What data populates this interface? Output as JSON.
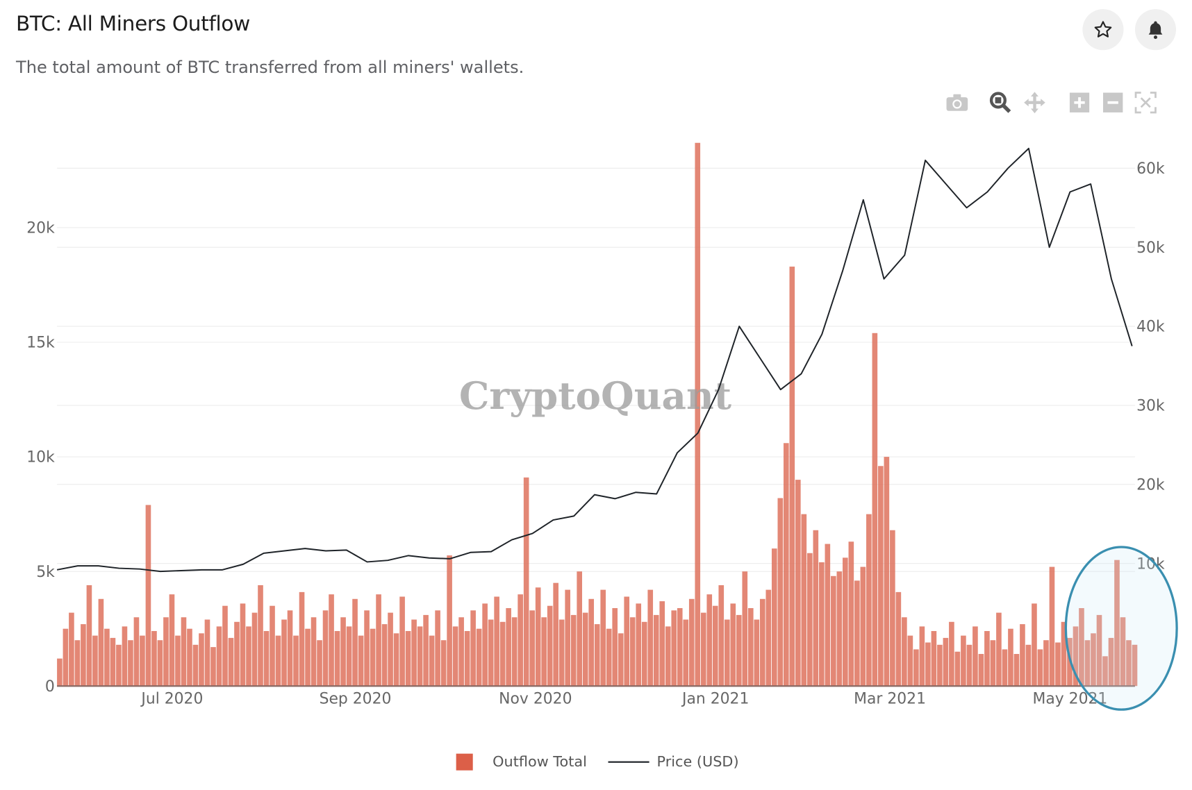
{
  "header": {
    "title": "BTC: All Miners Outflow",
    "subtitle": "The total amount of BTC transferred from all miners' wallets."
  },
  "actions": {
    "favorite": "star-icon",
    "alert": "bell-icon"
  },
  "toolbar": [
    "camera-icon",
    "zoom-icon",
    "pan-icon",
    "zoom-in-icon",
    "zoom-out-icon",
    "autoscale-icon"
  ],
  "watermark": "CryptoQuant",
  "colors": {
    "bars": "#e07a66",
    "price": "#1e2328",
    "annotation": "#3a8fb0"
  },
  "chart_data": {
    "type": "bar+line",
    "start_date": "2020-05-23",
    "bar_interval_days": 2,
    "price_interval_days": 7,
    "x_ticks": [
      {
        "label": "Jul 2020",
        "day": 39
      },
      {
        "label": "Sep 2020",
        "day": 101
      },
      {
        "label": "Nov 2020",
        "day": 162
      },
      {
        "label": "Jan 2021",
        "day": 223
      },
      {
        "label": "Mar 2021",
        "day": 282
      },
      {
        "label": "May 2021",
        "day": 343
      }
    ],
    "x_range_days": [
      0,
      365
    ],
    "y_left": {
      "range": [
        0,
        23800
      ],
      "ticks": [
        0,
        5000,
        10000,
        15000,
        20000
      ],
      "tick_labels": [
        "0",
        "5k",
        "10k",
        "15k",
        "20k"
      ]
    },
    "y_right": {
      "range": [
        -5500,
        63500
      ],
      "ticks": [
        10000,
        20000,
        30000,
        40000,
        50000,
        60000
      ],
      "tick_labels": [
        "10k",
        "20k",
        "30k",
        "40k",
        "50k",
        "60k"
      ]
    },
    "series": [
      {
        "name": "Outflow Total",
        "type": "bar",
        "axis": "left",
        "unit": "k BTC",
        "values": [
          1.2,
          2.5,
          3.2,
          2.0,
          2.7,
          4.4,
          2.2,
          3.8,
          2.5,
          2.1,
          1.8,
          2.6,
          2.0,
          3.0,
          2.2,
          7.9,
          2.4,
          2.0,
          3.0,
          4.0,
          2.2,
          3.0,
          2.5,
          1.8,
          2.3,
          2.9,
          1.7,
          2.6,
          3.5,
          2.1,
          2.8,
          3.6,
          2.6,
          3.2,
          4.4,
          2.4,
          3.5,
          2.2,
          2.9,
          3.3,
          2.2,
          4.1,
          2.5,
          3.0,
          2.0,
          3.3,
          4.0,
          2.4,
          3.0,
          2.6,
          3.8,
          2.2,
          3.3,
          2.5,
          4.0,
          2.7,
          3.2,
          2.3,
          3.9,
          2.4,
          2.9,
          2.6,
          3.1,
          2.2,
          3.3,
          2.0,
          5.7,
          2.6,
          3.0,
          2.4,
          3.3,
          2.5,
          3.6,
          2.9,
          3.9,
          2.8,
          3.4,
          3.0,
          4.0,
          9.1,
          3.3,
          4.3,
          3.0,
          3.5,
          4.5,
          2.9,
          4.2,
          3.1,
          5.0,
          3.2,
          3.8,
          2.7,
          4.2,
          2.5,
          3.4,
          2.3,
          3.9,
          3.0,
          3.6,
          2.8,
          4.2,
          3.1,
          3.7,
          2.6,
          3.3,
          3.4,
          2.9,
          3.8,
          23.7,
          3.2,
          4.0,
          3.5,
          4.4,
          2.9,
          3.6,
          3.1,
          5.0,
          3.4,
          2.9,
          3.8,
          4.2,
          6.0,
          8.2,
          10.6,
          18.3,
          9.0,
          7.5,
          5.8,
          6.8,
          5.4,
          6.2,
          4.8,
          5.0,
          5.6,
          6.3,
          4.6,
          5.2,
          7.5,
          15.4,
          9.6,
          10.0,
          6.8,
          4.1,
          3.0,
          2.2,
          1.6,
          2.6,
          1.9,
          2.4,
          1.8,
          2.1,
          2.8,
          1.5,
          2.2,
          1.8,
          2.6,
          1.4,
          2.4,
          2.0,
          3.2,
          1.6,
          2.5,
          1.4,
          2.7,
          1.8,
          3.6,
          1.6,
          2.0,
          5.2,
          1.9,
          2.8,
          2.1,
          2.6,
          3.4,
          2.0,
          2.3,
          3.1,
          1.3,
          2.1,
          5.5,
          3.0,
          2.0,
          1.8
        ]
      },
      {
        "name": "Price (USD)",
        "type": "line",
        "axis": "right",
        "unit": "k USD",
        "values": [
          9.2,
          9.7,
          9.7,
          9.4,
          9.3,
          9.0,
          9.1,
          9.2,
          9.2,
          9.9,
          11.3,
          11.6,
          11.9,
          11.6,
          11.7,
          10.2,
          10.4,
          11.0,
          10.7,
          10.6,
          11.4,
          11.5,
          13.0,
          13.8,
          15.5,
          16.0,
          18.7,
          18.2,
          19.0,
          18.8,
          24.0,
          26.5,
          32.0,
          40.0,
          36.0,
          32.0,
          34.0,
          39.0,
          47.0,
          56.0,
          46.0,
          49.0,
          61.0,
          58.0,
          55.0,
          57.0,
          60.0,
          62.5,
          50.0,
          57.0,
          58.0,
          46.0,
          37.5
        ]
      }
    ],
    "legend": {
      "position": "bottom-center",
      "items": [
        "Outflow Total",
        "Price (USD)"
      ]
    },
    "annotation": {
      "shape": "ellipse",
      "highlight": "May 2021"
    }
  }
}
